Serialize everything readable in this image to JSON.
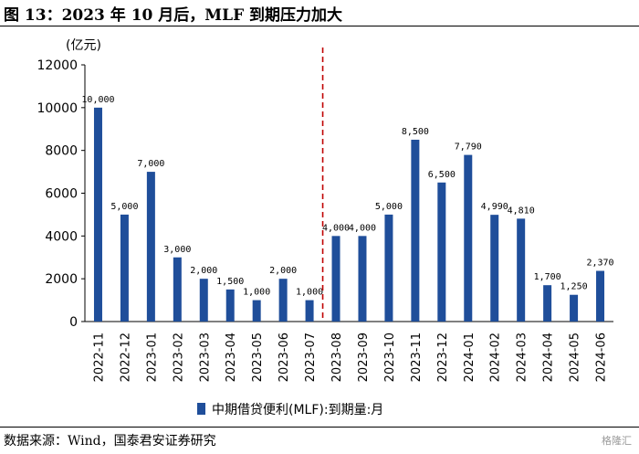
{
  "header": {
    "title": "图 13：2023 年 10 月后，MLF 到期压力加大"
  },
  "footer": {
    "source": "数据来源：Wind，国泰君安证券研究",
    "watermark": "格隆汇"
  },
  "colors": {
    "bar": "#1f4e9a",
    "divider": "#c00000"
  },
  "chart_data": {
    "type": "bar",
    "unit_label": "(亿元)",
    "categories": [
      "2022-11",
      "2022-12",
      "2023-01",
      "2023-02",
      "2023-03",
      "2023-04",
      "2023-05",
      "2023-06",
      "2023-07",
      "2023-08",
      "2023-09",
      "2023-10",
      "2023-11",
      "2023-12",
      "2024-01",
      "2024-02",
      "2024-03",
      "2024-04",
      "2024-05",
      "2024-06"
    ],
    "values": [
      10000,
      5000,
      7000,
      3000,
      2000,
      1500,
      1000,
      2000,
      1000,
      4000,
      4000,
      5000,
      8500,
      6500,
      7790,
      4990,
      4810,
      1700,
      1250,
      2370
    ],
    "value_labels": [
      "10,000",
      "5,000",
      "7,000",
      "3,000",
      "2,000",
      "1,500",
      "1,000",
      "2,000",
      "1,000",
      "4,000",
      "4,000",
      "5,000",
      "8,500",
      "6,500",
      "7,790",
      "4,990",
      "4,810",
      "1,700",
      "1,250",
      "2,370"
    ],
    "series": [
      {
        "name": "中期借贷便利(MLF):到期量:月"
      }
    ],
    "ylim": [
      0,
      12000
    ],
    "yticks": [
      0,
      2000,
      4000,
      6000,
      8000,
      10000,
      12000
    ],
    "ytick_labels": [
      "0",
      "2000",
      "4000",
      "6000",
      "8000",
      "10000",
      "12000"
    ],
    "divider_between": [
      "2023-07",
      "2023-08"
    ],
    "legend_position": "bottom-center",
    "grid": false
  }
}
